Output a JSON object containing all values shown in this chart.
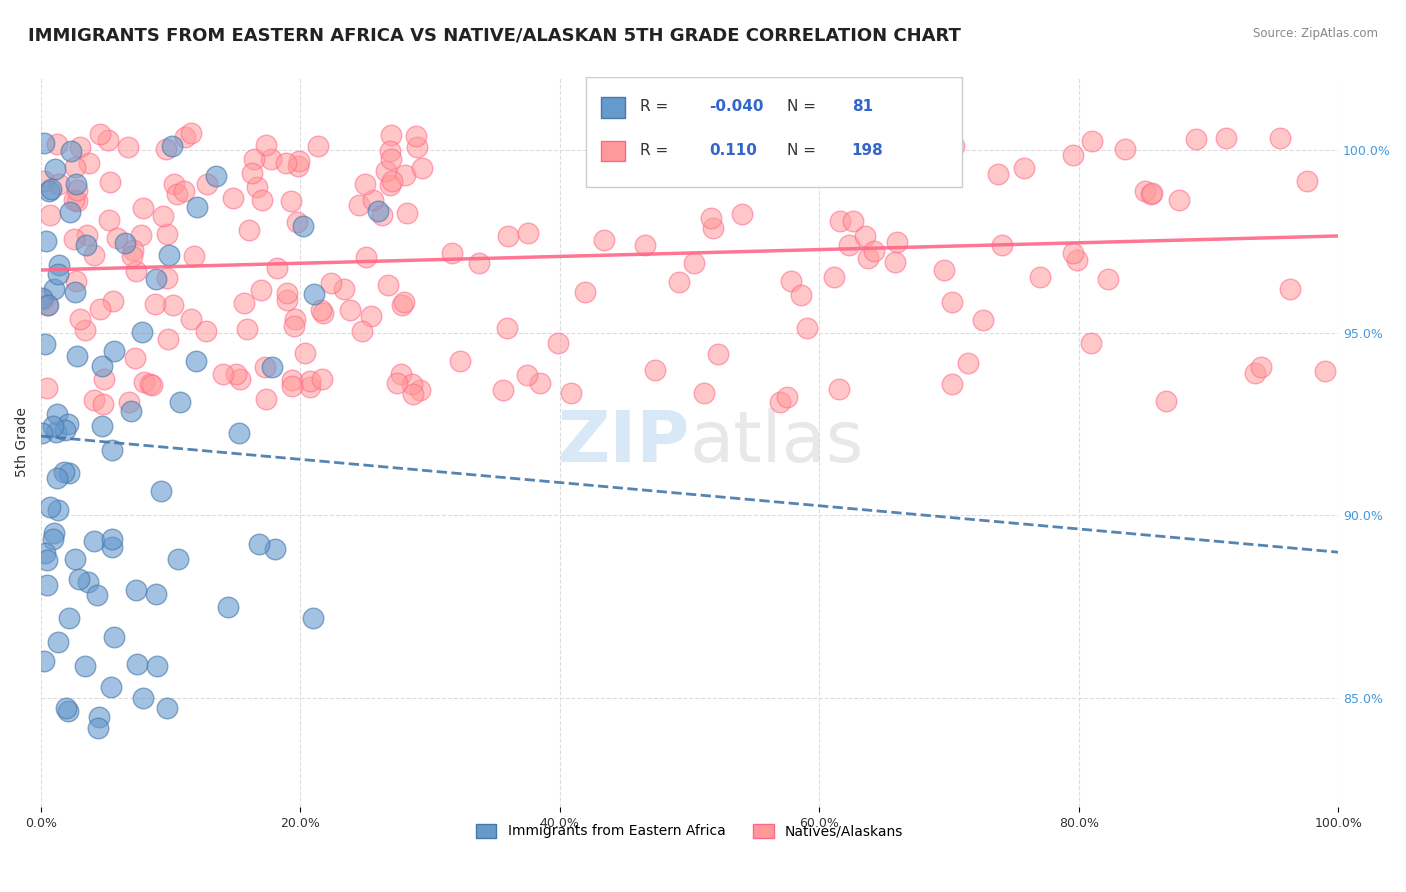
{
  "title": "IMMIGRANTS FROM EASTERN AFRICA VS NATIVE/ALASKAN 5TH GRADE CORRELATION CHART",
  "source": "Source: ZipAtlas.com",
  "xlabel": "",
  "ylabel": "5th Grade",
  "right_ytick_labels": [
    "85.0%",
    "90.0%",
    "95.0%",
    "100.0%"
  ],
  "right_ytick_values": [
    0.85,
    0.9,
    0.95,
    1.0
  ],
  "xlim": [
    0.0,
    1.0
  ],
  "ylim": [
    0.82,
    1.02
  ],
  "xtick_labels": [
    "0.0%",
    "20.0%",
    "40.0%",
    "60.0%",
    "80.0%",
    "100.0%"
  ],
  "xtick_values": [
    0.0,
    0.2,
    0.4,
    0.6,
    0.8,
    1.0
  ],
  "blue_R": -0.04,
  "blue_N": 81,
  "pink_R": 0.11,
  "pink_N": 198,
  "blue_color": "#6699CC",
  "pink_color": "#FF9999",
  "blue_line_color": "#4477AA",
  "pink_line_color": "#FF6688",
  "legend_label_blue": "Immigrants from Eastern Africa",
  "legend_label_pink": "Natives/Alaskans",
  "background_color": "#FFFFFF",
  "grid_color": "#DDDDDD",
  "title_fontsize": 13,
  "axis_label_fontsize": 10,
  "tick_fontsize": 9
}
